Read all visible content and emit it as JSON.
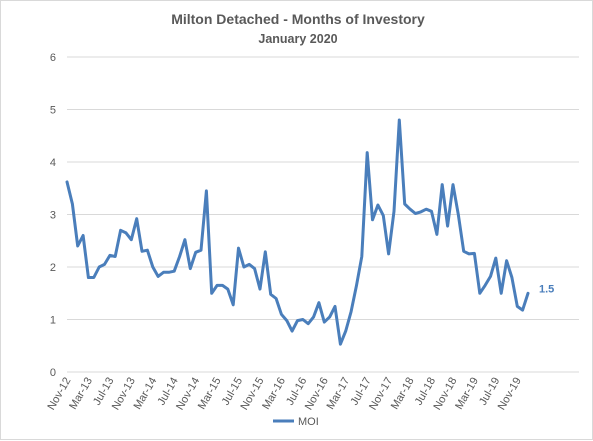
{
  "chart_data": {
    "type": "line",
    "title": "Milton Detached - Months of Investory",
    "subtitle": "January 2020",
    "xlabel": "",
    "ylabel": "",
    "ylim": [
      0,
      6
    ],
    "y_ticks": [
      "0",
      "1",
      "2",
      "3",
      "4",
      "5",
      "6"
    ],
    "x_tick_labels": [
      "Nov-12",
      "Mar-13",
      "Jul-13",
      "Nov-13",
      "Mar-14",
      "Jul-14",
      "Nov-14",
      "Mar-15",
      "Jul-15",
      "Nov-15",
      "Mar-16",
      "Jul-16",
      "Nov-16",
      "Mar-17",
      "Jul-17",
      "Nov-17",
      "Mar-18",
      "Jul-18",
      "Nov-18",
      "Mar-19",
      "Jul-19",
      "Nov-19"
    ],
    "grid": "horizontal",
    "legend_position": "bottom",
    "color": "#4a7ebb",
    "end_label": "1.5",
    "series": [
      {
        "name": "MOI",
        "x": [
          "Nov-12",
          "Dec-12",
          "Jan-13",
          "Feb-13",
          "Mar-13",
          "Apr-13",
          "May-13",
          "Jun-13",
          "Jul-13",
          "Aug-13",
          "Sep-13",
          "Oct-13",
          "Nov-13",
          "Dec-13",
          "Jan-14",
          "Feb-14",
          "Mar-14",
          "Apr-14",
          "May-14",
          "Jun-14",
          "Jul-14",
          "Aug-14",
          "Sep-14",
          "Oct-14",
          "Nov-14",
          "Dec-14",
          "Jan-15",
          "Feb-15",
          "Mar-15",
          "Apr-15",
          "May-15",
          "Jun-15",
          "Jul-15",
          "Aug-15",
          "Sep-15",
          "Oct-15",
          "Nov-15",
          "Dec-15",
          "Jan-16",
          "Feb-16",
          "Mar-16",
          "Apr-16",
          "May-16",
          "Jun-16",
          "Jul-16",
          "Aug-16",
          "Sep-16",
          "Oct-16",
          "Nov-16",
          "Dec-16",
          "Jan-17",
          "Feb-17",
          "Mar-17",
          "Apr-17",
          "May-17",
          "Jun-17",
          "Jul-17",
          "Aug-17",
          "Sep-17",
          "Oct-17",
          "Nov-17",
          "Dec-17",
          "Jan-18",
          "Feb-18",
          "Mar-18",
          "Apr-18",
          "May-18",
          "Jun-18",
          "Jul-18",
          "Aug-18",
          "Sep-18",
          "Oct-18",
          "Nov-18",
          "Dec-18",
          "Jan-19",
          "Feb-19",
          "Mar-19",
          "Apr-19",
          "May-19",
          "Jun-19",
          "Jul-19",
          "Aug-19",
          "Sep-19",
          "Oct-19",
          "Nov-19",
          "Dec-19",
          "Jan-20"
        ],
        "values": [
          3.62,
          3.2,
          2.4,
          2.6,
          1.8,
          1.8,
          2.0,
          2.05,
          2.22,
          2.2,
          2.7,
          2.65,
          2.52,
          2.92,
          2.3,
          2.32,
          2.0,
          1.82,
          1.9,
          1.9,
          1.92,
          2.2,
          2.52,
          1.97,
          2.28,
          2.32,
          3.45,
          1.5,
          1.65,
          1.65,
          1.58,
          1.28,
          2.36,
          2.0,
          2.05,
          1.97,
          1.58,
          2.29,
          1.48,
          1.4,
          1.1,
          0.98,
          0.78,
          0.98,
          1.0,
          0.92,
          1.05,
          1.32,
          0.95,
          1.05,
          1.25,
          0.53,
          0.78,
          1.15,
          1.65,
          2.2,
          4.18,
          2.9,
          3.18,
          2.98,
          2.25,
          3.06,
          4.8,
          3.2,
          3.1,
          3.02,
          3.05,
          3.1,
          3.06,
          2.62,
          3.57,
          2.78,
          3.57,
          3.0,
          2.3,
          2.25,
          2.26,
          1.5,
          1.65,
          1.82,
          2.17,
          1.5,
          2.12,
          1.8,
          1.25,
          1.18,
          1.5
        ]
      }
    ]
  }
}
